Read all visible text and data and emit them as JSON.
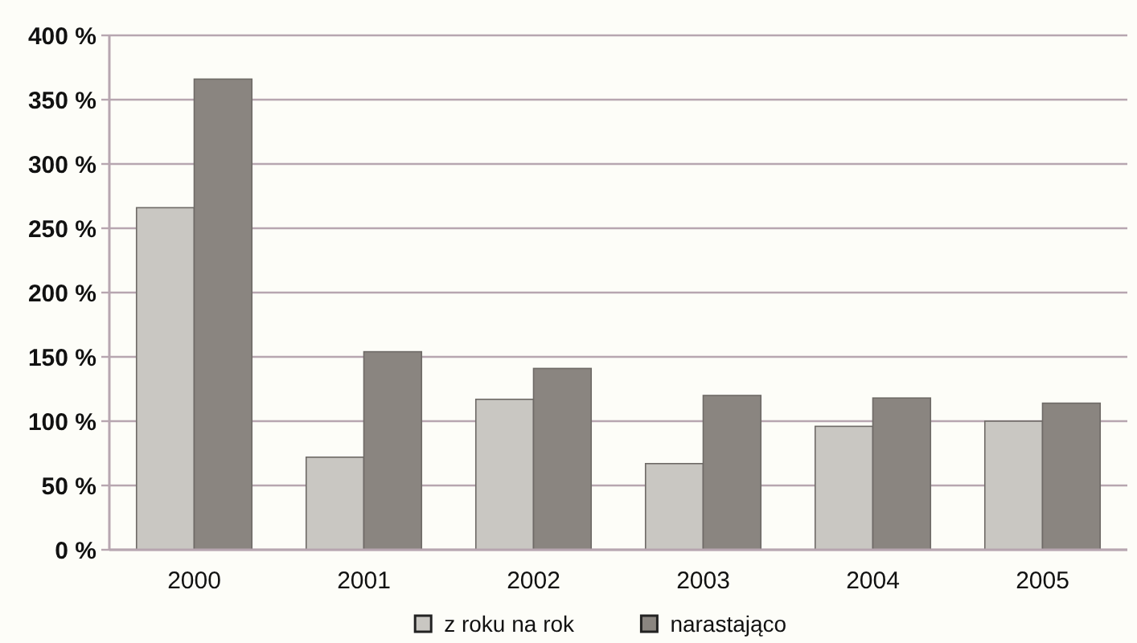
{
  "chart_data": {
    "type": "bar",
    "categories": [
      "2000",
      "2001",
      "2002",
      "2003",
      "2004",
      "2005"
    ],
    "series": [
      {
        "name": "z roku na rok",
        "color": "#c9c7c2",
        "values": [
          266,
          72,
          117,
          67,
          96,
          100
        ]
      },
      {
        "name": "narastająco",
        "color": "#8a8580",
        "values": [
          366,
          154,
          141,
          120,
          118,
          114
        ]
      }
    ],
    "ylim": [
      0,
      400
    ],
    "yticks": [
      {
        "value": 0,
        "label": "0 %"
      },
      {
        "value": 50,
        "label": "50 %"
      },
      {
        "value": 100,
        "label": "100 %"
      },
      {
        "value": 150,
        "label": "150 %"
      },
      {
        "value": 200,
        "label": "200 %"
      },
      {
        "value": 250,
        "label": "250 %"
      },
      {
        "value": 300,
        "label": "300 %"
      },
      {
        "value": 350,
        "label": "350 %"
      },
      {
        "value": 400,
        "label": "400 %"
      }
    ],
    "grid": "y",
    "legend": "bottom"
  }
}
